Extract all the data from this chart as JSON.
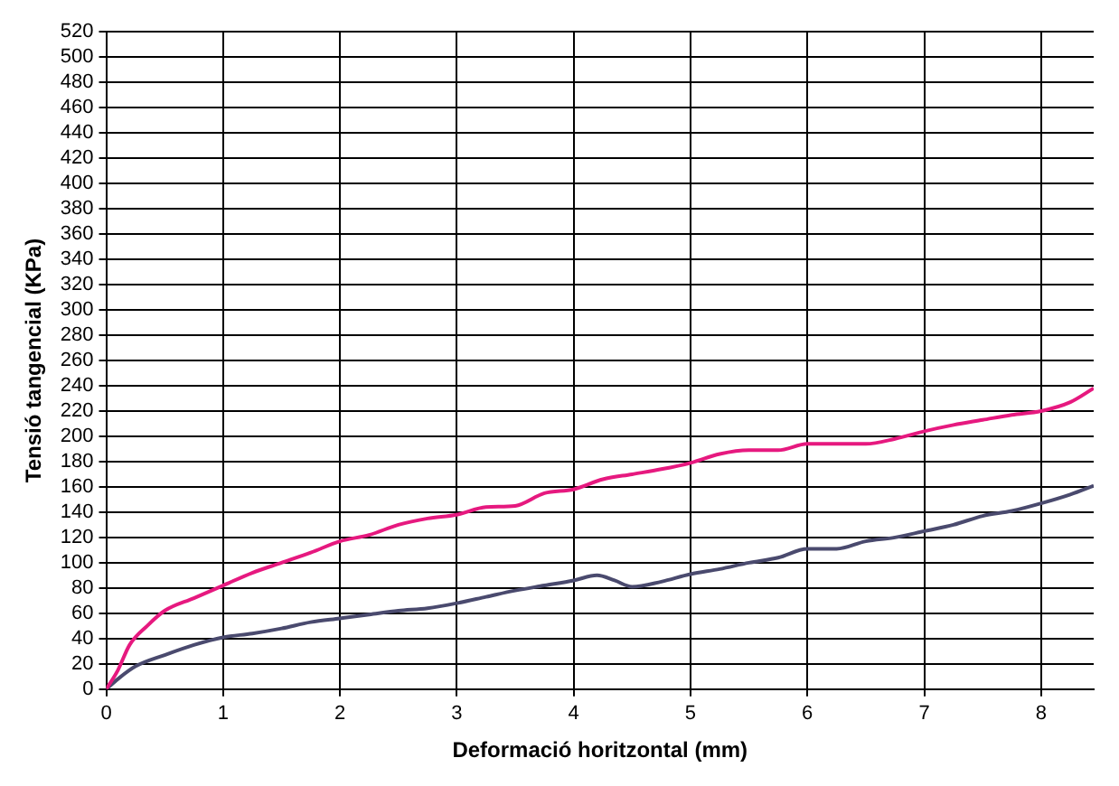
{
  "chart_data": {
    "type": "line",
    "xlabel": "Deformació horitzontal (mm)",
    "ylabel": "Tensió tangencial (KPa)",
    "xlim": [
      0,
      8.45
    ],
    "xticks": [
      0,
      1,
      2,
      3,
      4,
      5,
      6,
      7,
      8
    ],
    "ylim": [
      0,
      520
    ],
    "yticks": [
      0,
      20,
      40,
      60,
      80,
      100,
      120,
      140,
      160,
      180,
      200,
      220,
      240,
      260,
      280,
      300,
      320,
      340,
      360,
      380,
      400,
      420,
      440,
      460,
      480,
      500,
      520
    ],
    "grid": true,
    "legend": false,
    "marker": "none",
    "line_style": "solid",
    "series": [
      {
        "color": "#e6197f",
        "x": [
          0,
          0.1,
          0.2,
          0.35,
          0.5,
          0.75,
          1,
          1.25,
          1.5,
          1.75,
          2,
          2.25,
          2.5,
          2.75,
          3,
          3.25,
          3.5,
          3.75,
          4,
          4.25,
          4.5,
          4.75,
          5,
          5.25,
          5.5,
          5.75,
          6,
          6.25,
          6.5,
          6.75,
          7,
          7.25,
          7.5,
          7.75,
          8,
          8.25,
          8.45
        ],
        "values": [
          0,
          15,
          35,
          50,
          62,
          72,
          82,
          92,
          100,
          108,
          117,
          122,
          130,
          135,
          138,
          144,
          145,
          155,
          158,
          166,
          170,
          174,
          179,
          186,
          189,
          189,
          194,
          194,
          194,
          198,
          204,
          209,
          213,
          217,
          220,
          227,
          238
        ]
      },
      {
        "color": "#4a4a6e",
        "x": [
          0,
          0.1,
          0.25,
          0.5,
          0.75,
          1,
          1.25,
          1.5,
          1.75,
          2,
          2.25,
          2.5,
          2.75,
          3,
          3.25,
          3.5,
          3.75,
          4,
          4.2,
          4.35,
          4.5,
          4.75,
          5,
          5.25,
          5.5,
          5.75,
          6,
          6.25,
          6.5,
          6.75,
          7,
          7.25,
          7.5,
          7.75,
          8,
          8.25,
          8.45
        ],
        "values": [
          0,
          8,
          18,
          27,
          35,
          41,
          44,
          48,
          53,
          56,
          59,
          62,
          64,
          68,
          73,
          78,
          82,
          86,
          90,
          86,
          81,
          85,
          91,
          95,
          100,
          104,
          111,
          111,
          117,
          120,
          125,
          130,
          137,
          141,
          147,
          154,
          161
        ]
      }
    ]
  }
}
